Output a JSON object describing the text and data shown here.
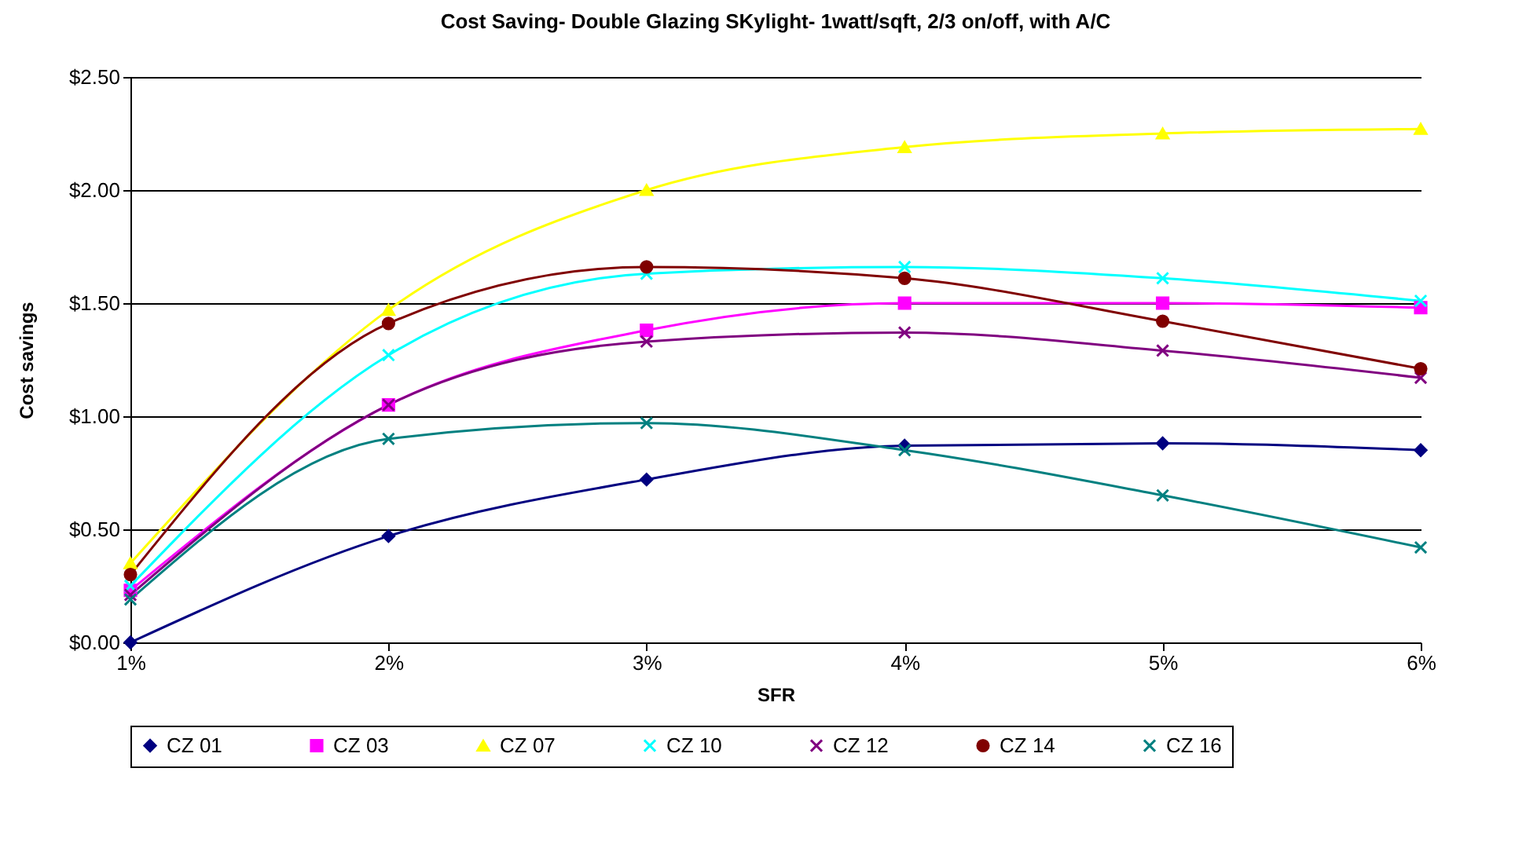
{
  "chart_data": {
    "type": "line",
    "title": "Cost Saving- Double Glazing SKylight- 1watt/sqft, 2/3 on/off, with A/C",
    "xlabel": "SFR",
    "ylabel": "Cost savings",
    "categories": [
      "1%",
      "2%",
      "3%",
      "4%",
      "5%",
      "6%"
    ],
    "ylim": [
      0,
      2.5
    ],
    "yticks": [
      {
        "value": 0,
        "label": "$0.00"
      },
      {
        "value": 0.5,
        "label": "$0.50"
      },
      {
        "value": 1,
        "label": "$1.00"
      },
      {
        "value": 1.5,
        "label": "$1.50"
      },
      {
        "value": 2,
        "label": "$2.00"
      },
      {
        "value": 2.5,
        "label": "$2.50"
      }
    ],
    "grid": "y",
    "legend": "bottom",
    "series": [
      {
        "name": "CZ 01",
        "color": "#000080",
        "marker": "diamond",
        "values": [
          0,
          0.47,
          0.72,
          0.87,
          0.88,
          0.85
        ]
      },
      {
        "name": "CZ 03",
        "color": "#ff00ff",
        "marker": "square",
        "values": [
          0.23,
          1.05,
          1.38,
          1.5,
          1.5,
          1.48
        ]
      },
      {
        "name": "CZ 07",
        "color": "#ffff00",
        "marker": "triangle",
        "values": [
          0.35,
          1.47,
          2.0,
          2.19,
          2.25,
          2.27
        ]
      },
      {
        "name": "CZ 10",
        "color": "#00ffff",
        "marker": "cross",
        "values": [
          0.25,
          1.27,
          1.63,
          1.66,
          1.61,
          1.51
        ]
      },
      {
        "name": "CZ 12",
        "color": "#800080",
        "marker": "cross",
        "values": [
          0.21,
          1.05,
          1.33,
          1.37,
          1.29,
          1.17
        ]
      },
      {
        "name": "CZ 14",
        "color": "#800000",
        "marker": "circle",
        "values": [
          0.3,
          1.41,
          1.66,
          1.61,
          1.42,
          1.21
        ]
      },
      {
        "name": "CZ 16",
        "color": "#008080",
        "marker": "cross",
        "values": [
          0.19,
          0.9,
          0.97,
          0.85,
          0.65,
          0.42
        ]
      }
    ]
  }
}
